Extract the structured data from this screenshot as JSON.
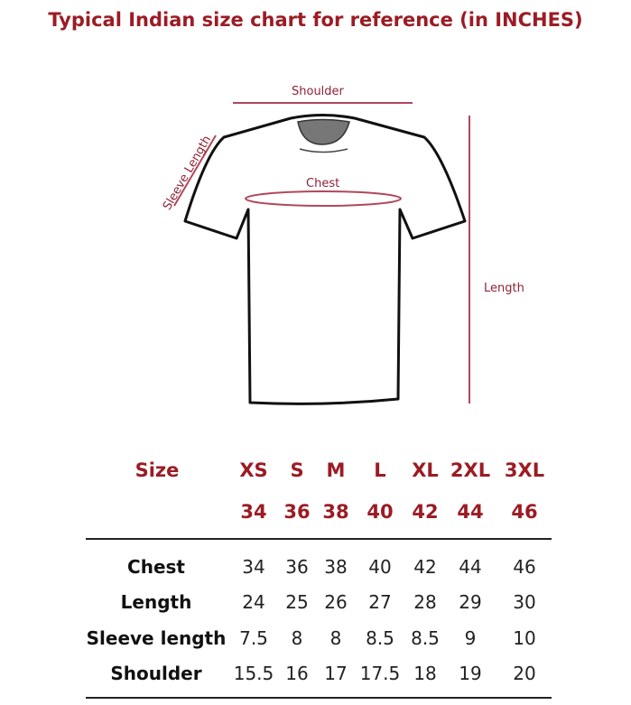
{
  "title": "Typical Indian size chart for reference (in INCHES)",
  "diagram": {
    "shoulder": "Shoulder",
    "sleeve": "Sleeve Length",
    "chest": "Chest",
    "length": "Length",
    "accent_color": "#9b1c24"
  },
  "table": {
    "size_label": "Size",
    "sizes": [
      "XS",
      "S",
      "M",
      "L",
      "XL",
      "2XL",
      "3XL"
    ],
    "size_numbers": [
      "34",
      "36",
      "38",
      "40",
      "42",
      "44",
      "46"
    ],
    "rows": [
      {
        "label": "Chest",
        "values": [
          "34",
          "36",
          "38",
          "40",
          "42",
          "44",
          "46"
        ]
      },
      {
        "label": "Length",
        "values": [
          "24",
          "25",
          "26",
          "27",
          "28",
          "29",
          "30"
        ]
      },
      {
        "label": "Sleeve length",
        "values": [
          "7.5",
          "8",
          "8",
          "8.5",
          "8.5",
          "9",
          "10"
        ]
      },
      {
        "label": "Shoulder",
        "values": [
          "15.5",
          "16",
          "17",
          "17.5",
          "18",
          "19",
          "20"
        ]
      }
    ]
  }
}
